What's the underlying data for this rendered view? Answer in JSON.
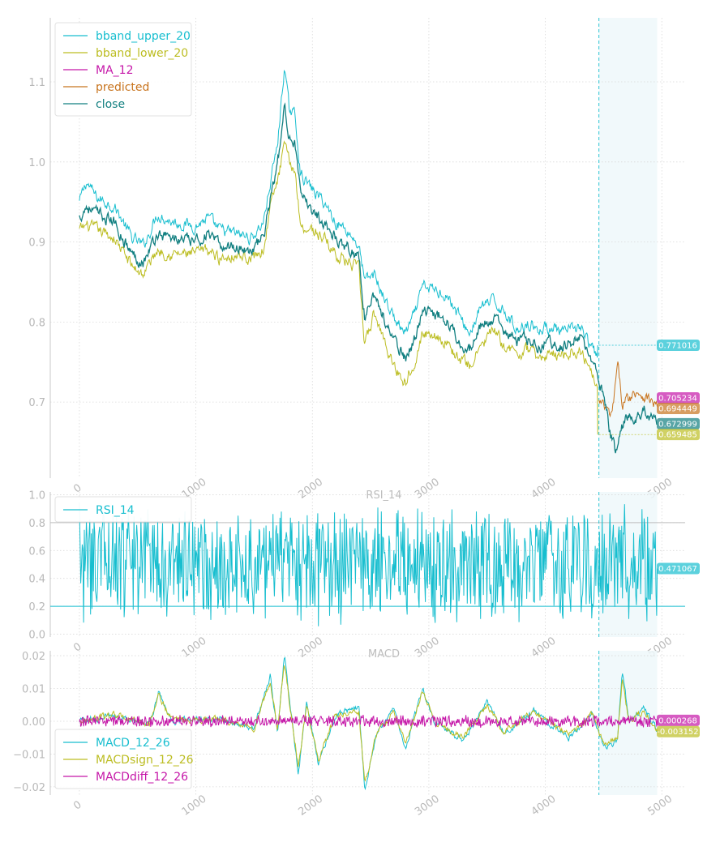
{
  "chart_data": [
    {
      "type": "line",
      "title": "",
      "xlim": [
        -250,
        5200
      ],
      "ylim": [
        0.605,
        1.18
      ],
      "x_ticks": [
        0,
        1000,
        2000,
        3000,
        4000,
        5000
      ],
      "x_tick_labels": [
        "0",
        "1000",
        "2000",
        "3000",
        "4000",
        "5000"
      ],
      "y_ticks": [
        0.7,
        0.8,
        0.9,
        1.0,
        1.1
      ],
      "y_tick_labels": [
        "0.7",
        "0.8",
        "0.9",
        "1.0",
        "1.1"
      ],
      "grid": true,
      "legend_position": "top-left",
      "prediction_start_x": 4460,
      "prediction_end_x": 4960,
      "series": [
        {
          "name": "bband_upper_20",
          "color": "#17becf",
          "end_value": 0.771016,
          "knots": [
            [
              0,
              0.95
            ],
            [
              60,
              0.975
            ],
            [
              150,
              0.955
            ],
            [
              300,
              0.945
            ],
            [
              450,
              0.905
            ],
            [
              550,
              0.895
            ],
            [
              670,
              0.935
            ],
            [
              800,
              0.925
            ],
            [
              1000,
              0.92
            ],
            [
              1100,
              0.93
            ],
            [
              1200,
              0.915
            ],
            [
              1350,
              0.91
            ],
            [
              1480,
              0.905
            ],
            [
              1580,
              0.925
            ],
            [
              1640,
              0.975
            ],
            [
              1700,
              1.02
            ],
            [
              1760,
              1.12
            ],
            [
              1800,
              1.065
            ],
            [
              1850,
              1.06
            ],
            [
              1900,
              0.985
            ],
            [
              2000,
              0.965
            ],
            [
              2100,
              0.95
            ],
            [
              2200,
              0.925
            ],
            [
              2300,
              0.915
            ],
            [
              2400,
              0.895
            ],
            [
              2450,
              0.85
            ],
            [
              2530,
              0.86
            ],
            [
              2600,
              0.835
            ],
            [
              2700,
              0.805
            ],
            [
              2800,
              0.785
            ],
            [
              2880,
              0.81
            ],
            [
              2950,
              0.845
            ],
            [
              3050,
              0.84
            ],
            [
              3150,
              0.835
            ],
            [
              3250,
              0.81
            ],
            [
              3350,
              0.785
            ],
            [
              3450,
              0.82
            ],
            [
              3550,
              0.825
            ],
            [
              3650,
              0.815
            ],
            [
              3750,
              0.79
            ],
            [
              3850,
              0.8
            ],
            [
              3950,
              0.79
            ],
            [
              4050,
              0.795
            ],
            [
              4150,
              0.785
            ],
            [
              4300,
              0.795
            ],
            [
              4380,
              0.77
            ],
            [
              4450,
              0.755
            ]
          ]
        },
        {
          "name": "bband_lower_20",
          "color": "#bcbd22",
          "end_value": 0.659485,
          "knots": [
            [
              0,
              0.915
            ],
            [
              60,
              0.92
            ],
            [
              150,
              0.915
            ],
            [
              300,
              0.905
            ],
            [
              450,
              0.87
            ],
            [
              550,
              0.86
            ],
            [
              670,
              0.89
            ],
            [
              800,
              0.885
            ],
            [
              1000,
              0.885
            ],
            [
              1100,
              0.89
            ],
            [
              1200,
              0.88
            ],
            [
              1350,
              0.885
            ],
            [
              1480,
              0.88
            ],
            [
              1580,
              0.89
            ],
            [
              1640,
              0.945
            ],
            [
              1700,
              0.975
            ],
            [
              1760,
              1.02
            ],
            [
              1800,
              1.0
            ],
            [
              1850,
              0.99
            ],
            [
              1900,
              0.92
            ],
            [
              2000,
              0.915
            ],
            [
              2100,
              0.905
            ],
            [
              2200,
              0.885
            ],
            [
              2300,
              0.875
            ],
            [
              2400,
              0.865
            ],
            [
              2450,
              0.77
            ],
            [
              2530,
              0.81
            ],
            [
              2600,
              0.785
            ],
            [
              2700,
              0.745
            ],
            [
              2800,
              0.725
            ],
            [
              2880,
              0.755
            ],
            [
              2950,
              0.785
            ],
            [
              3050,
              0.785
            ],
            [
              3150,
              0.775
            ],
            [
              3250,
              0.755
            ],
            [
              3350,
              0.745
            ],
            [
              3450,
              0.77
            ],
            [
              3550,
              0.79
            ],
            [
              3650,
              0.77
            ],
            [
              3750,
              0.76
            ],
            [
              3850,
              0.765
            ],
            [
              3950,
              0.755
            ],
            [
              4050,
              0.76
            ],
            [
              4150,
              0.76
            ],
            [
              4300,
              0.765
            ],
            [
              4380,
              0.745
            ],
            [
              4450,
              0.725
            ]
          ]
        },
        {
          "name": "MA_12",
          "color": "#c516a8",
          "end_value": 0.705234,
          "knots": []
        },
        {
          "name": "predicted",
          "color": "#c8741e",
          "end_value": 0.694449,
          "knots": [
            [
              4460,
              0.7
            ],
            [
              4520,
              0.69
            ],
            [
              4570,
              0.68
            ],
            [
              4620,
              0.745
            ],
            [
              4660,
              0.7
            ],
            [
              4720,
              0.705
            ],
            [
              4780,
              0.715
            ],
            [
              4830,
              0.71
            ],
            [
              4880,
              0.705
            ],
            [
              4960,
              0.694
            ]
          ]
        },
        {
          "name": "close",
          "color": "#117f80",
          "end_value": 0.672999,
          "knots": [
            [
              0,
              0.93
            ],
            [
              60,
              0.945
            ],
            [
              150,
              0.935
            ],
            [
              300,
              0.925
            ],
            [
              450,
              0.885
            ],
            [
              550,
              0.875
            ],
            [
              670,
              0.91
            ],
            [
              800,
              0.905
            ],
            [
              1000,
              0.9
            ],
            [
              1100,
              0.91
            ],
            [
              1200,
              0.895
            ],
            [
              1350,
              0.895
            ],
            [
              1480,
              0.89
            ],
            [
              1580,
              0.905
            ],
            [
              1640,
              0.955
            ],
            [
              1700,
              0.995
            ],
            [
              1760,
              1.065
            ],
            [
              1800,
              1.035
            ],
            [
              1850,
              1.025
            ],
            [
              1900,
              0.955
            ],
            [
              2000,
              0.94
            ],
            [
              2100,
              0.925
            ],
            [
              2200,
              0.905
            ],
            [
              2300,
              0.895
            ],
            [
              2400,
              0.88
            ],
            [
              2450,
              0.805
            ],
            [
              2530,
              0.835
            ],
            [
              2600,
              0.81
            ],
            [
              2700,
              0.775
            ],
            [
              2800,
              0.755
            ],
            [
              2880,
              0.78
            ],
            [
              2950,
              0.815
            ],
            [
              3050,
              0.81
            ],
            [
              3150,
              0.805
            ],
            [
              3250,
              0.78
            ],
            [
              3350,
              0.765
            ],
            [
              3450,
              0.795
            ],
            [
              3550,
              0.805
            ],
            [
              3650,
              0.79
            ],
            [
              3750,
              0.775
            ],
            [
              3850,
              0.78
            ],
            [
              3950,
              0.77
            ],
            [
              4050,
              0.775
            ],
            [
              4150,
              0.77
            ],
            [
              4300,
              0.78
            ],
            [
              4380,
              0.755
            ],
            [
              4450,
              0.735
            ],
            [
              4500,
              0.705
            ],
            [
              4560,
              0.66
            ],
            [
              4600,
              0.64
            ],
            [
              4660,
              0.67
            ],
            [
              4720,
              0.685
            ],
            [
              4780,
              0.68
            ],
            [
              4850,
              0.69
            ],
            [
              4960,
              0.673
            ]
          ]
        }
      ]
    },
    {
      "type": "line",
      "title": "RSI_14",
      "xlim": [
        -250,
        5200
      ],
      "ylim": [
        -0.02,
        1.02
      ],
      "x_ticks": [
        0,
        1000,
        2000,
        3000,
        4000,
        5000
      ],
      "x_tick_labels": [
        "0",
        "1000",
        "2000",
        "3000",
        "4000",
        "5000"
      ],
      "y_ticks": [
        0.0,
        0.2,
        0.4,
        0.6,
        0.8,
        1.0
      ],
      "y_tick_labels": [
        "0.0",
        "0.2",
        "0.4",
        "0.6",
        "0.8",
        "1.0"
      ],
      "reference_lines": [
        0.2,
        0.8
      ],
      "grid": true,
      "legend_position": "top-left",
      "prediction_start_x": 4460,
      "prediction_end_x": 4960,
      "series": [
        {
          "name": "RSI_14",
          "color": "#17becf",
          "end_value": 0.471067,
          "center": 0.5,
          "spread": 0.45
        }
      ]
    },
    {
      "type": "line",
      "title": "MACD",
      "xlim": [
        -250,
        5200
      ],
      "ylim": [
        -0.0225,
        0.0215
      ],
      "x_ticks": [
        0,
        1000,
        2000,
        3000,
        4000,
        5000
      ],
      "x_tick_labels": [
        "0",
        "1000",
        "2000",
        "3000",
        "4000",
        "5000"
      ],
      "y_ticks": [
        -0.02,
        -0.01,
        0.0,
        0.01,
        0.02
      ],
      "y_tick_labels": [
        "−0.02",
        "−0.01",
        "0.00",
        "0.01",
        "0.02"
      ],
      "grid": true,
      "legend_position": "bottom-left",
      "prediction_start_x": 4460,
      "prediction_end_x": 4960,
      "series": [
        {
          "name": "MACD_12_26",
          "color": "#17becf",
          "end_value": null,
          "knots": [
            [
              0,
              0.0
            ],
            [
              300,
              0.002
            ],
            [
              600,
              -0.001
            ],
            [
              680,
              0.009
            ],
            [
              800,
              0.0
            ],
            [
              1200,
              0.001
            ],
            [
              1500,
              -0.002
            ],
            [
              1640,
              0.014
            ],
            [
              1700,
              -0.004
            ],
            [
              1760,
              0.02
            ],
            [
              1800,
              0.008
            ],
            [
              1880,
              -0.016
            ],
            [
              1950,
              0.006
            ],
            [
              2050,
              -0.013
            ],
            [
              2200,
              0.002
            ],
            [
              2400,
              0.004
            ],
            [
              2450,
              -0.021
            ],
            [
              2550,
              -0.004
            ],
            [
              2700,
              0.004
            ],
            [
              2800,
              -0.008
            ],
            [
              2950,
              0.01
            ],
            [
              3050,
              0.0
            ],
            [
              3300,
              -0.006
            ],
            [
              3500,
              0.006
            ],
            [
              3650,
              -0.004
            ],
            [
              3900,
              0.003
            ],
            [
              4200,
              -0.005
            ],
            [
              4400,
              0.002
            ],
            [
              4500,
              -0.008
            ],
            [
              4620,
              -0.006
            ],
            [
              4660,
              0.015
            ],
            [
              4720,
              0.0
            ],
            [
              4850,
              0.004
            ],
            [
              4960,
              -0.003
            ]
          ]
        },
        {
          "name": "MACDsign_12_26",
          "color": "#bcbd22",
          "end_value": -0.003152,
          "knots": [
            [
              0,
              0.0
            ],
            [
              300,
              0.002
            ],
            [
              600,
              -0.001
            ],
            [
              680,
              0.008
            ],
            [
              800,
              0.0
            ],
            [
              1200,
              0.001
            ],
            [
              1500,
              -0.002
            ],
            [
              1640,
              0.012
            ],
            [
              1700,
              -0.003
            ],
            [
              1760,
              0.018
            ],
            [
              1800,
              0.007
            ],
            [
              1880,
              -0.014
            ],
            [
              1950,
              0.005
            ],
            [
              2050,
              -0.012
            ],
            [
              2200,
              0.002
            ],
            [
              2400,
              0.003
            ],
            [
              2450,
              -0.019
            ],
            [
              2550,
              -0.004
            ],
            [
              2700,
              0.003
            ],
            [
              2800,
              -0.007
            ],
            [
              2950,
              0.009
            ],
            [
              3050,
              0.0
            ],
            [
              3300,
              -0.005
            ],
            [
              3500,
              0.005
            ],
            [
              3650,
              -0.003
            ],
            [
              3900,
              0.003
            ],
            [
              4200,
              -0.004
            ],
            [
              4400,
              0.002
            ],
            [
              4500,
              -0.007
            ],
            [
              4620,
              -0.005
            ],
            [
              4660,
              0.013
            ],
            [
              4720,
              0.0
            ],
            [
              4850,
              0.003
            ],
            [
              4960,
              -0.003152
            ]
          ]
        },
        {
          "name": "MACDdiff_12_26",
          "color": "#c516a8",
          "end_value": 0.000268,
          "center": 0.0,
          "spread": 0.002
        }
      ]
    }
  ]
}
